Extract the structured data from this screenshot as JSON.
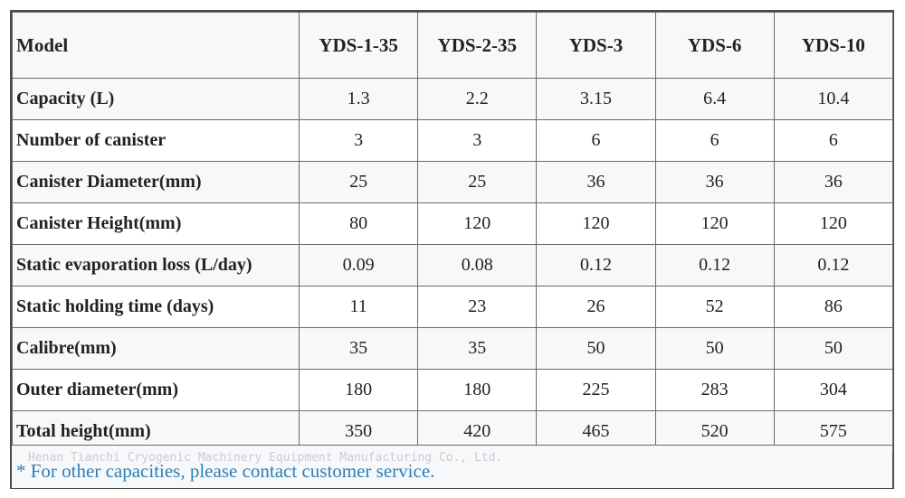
{
  "table": {
    "header": {
      "label": "Model",
      "models": [
        "YDS-1-35",
        "YDS-2-35",
        "YDS-3",
        "YDS-6",
        "YDS-10"
      ]
    },
    "rows": [
      {
        "label": "Capacity (L)",
        "values": [
          "1.3",
          "2.2",
          "3.15",
          "6.4",
          "10.4"
        ]
      },
      {
        "label": "Number of canister",
        "values": [
          "3",
          "3",
          "6",
          "6",
          "6"
        ]
      },
      {
        "label": "Canister Diameter(mm)",
        "values": [
          "25",
          "25",
          "36",
          "36",
          "36"
        ]
      },
      {
        "label": "Canister Height(mm)",
        "values": [
          "80",
          "120",
          "120",
          "120",
          "120"
        ]
      },
      {
        "label": "Static evaporation loss (L/day)",
        "values": [
          "0.09",
          "0.08",
          "0.12",
          "0.12",
          "0.12"
        ]
      },
      {
        "label": "Static holding time (days)",
        "values": [
          "11",
          "23",
          "26",
          "52",
          "86"
        ]
      },
      {
        "label": "Calibre(mm)",
        "values": [
          "35",
          "35",
          "50",
          "50",
          "50"
        ]
      },
      {
        "label": "Outer diameter(mm)",
        "values": [
          "180",
          "180",
          "225",
          "283",
          "304"
        ]
      },
      {
        "label": "Total height(mm)",
        "values": [
          "350",
          "420",
          "465",
          "520",
          "575"
        ]
      }
    ]
  },
  "footer": {
    "watermark": "Henan Tianchi Cryogenic Machinery Equipment Manufacturing Co., Ltd.",
    "note": "* For other capacities, please contact customer service."
  }
}
